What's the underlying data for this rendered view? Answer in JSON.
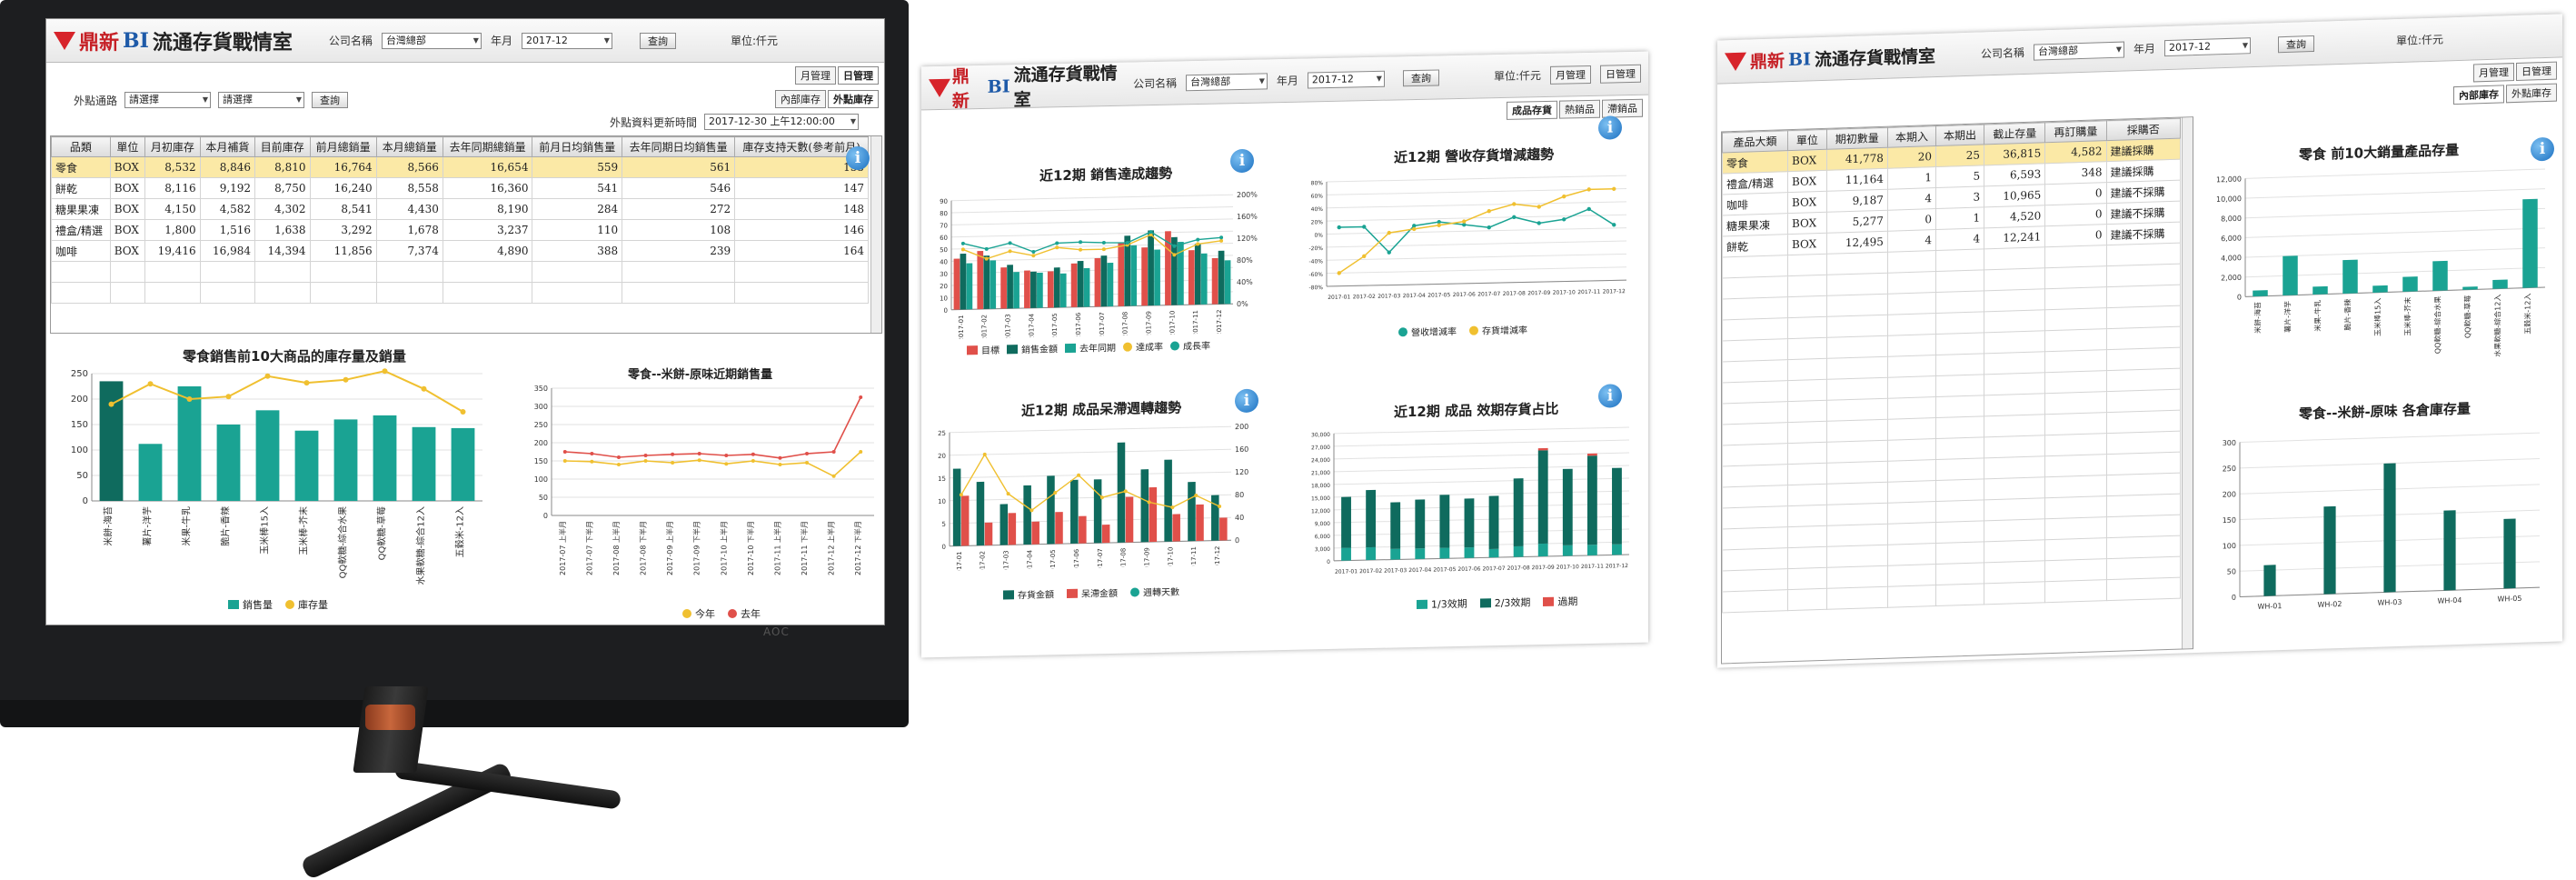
{
  "brand": {
    "name": "鼎新",
    "bi": "BI",
    "title": "流通存貨戰情室"
  },
  "colors": {
    "teal": "#1aa393",
    "dark_teal": "#0f6b5e",
    "red": "#e0504a",
    "yellow": "#f0c030",
    "blue": "#2f7fc1"
  },
  "panel1": {
    "company_label": "公司名稱",
    "company_value": "台灣總部",
    "period_label": "年月",
    "period_value": "2017-12",
    "query_label": "查詢",
    "unit_label": "單位:仟元",
    "tabs": [
      "月管理",
      "日管理"
    ],
    "channel_label": "外點通路",
    "channel_select1": "請選擇",
    "channel_select2": "請選擇",
    "channel_query": "查詢",
    "update_label": "外點資料更新時間",
    "update_value": "2017-12-30 上午12:00:00",
    "subtabs": [
      "內部庫存",
      "外點庫存"
    ],
    "table": {
      "columns": [
        "品類",
        "單位",
        "月初庫存",
        "本月補貨",
        "目前庫存",
        "前月總銷量",
        "本月總銷量",
        "去年同期總銷量",
        "前月日均銷售量",
        "去年同期日均銷售量",
        "庫存支持天數(參考前月)"
      ],
      "rows": [
        [
          "零食",
          "BOX",
          "8,532",
          "8,846",
          "8,810",
          "16,764",
          "8,566",
          "16,654",
          "559",
          "561",
          "155"
        ],
        [
          "餅乾",
          "BOX",
          "8,116",
          "9,192",
          "8,750",
          "16,240",
          "8,558",
          "16,360",
          "541",
          "546",
          "147"
        ],
        [
          "糖果果凍",
          "BOX",
          "4,150",
          "4,582",
          "4,302",
          "8,541",
          "4,430",
          "8,190",
          "284",
          "272",
          "148"
        ],
        [
          "禮盒/精選",
          "BOX",
          "1,800",
          "1,516",
          "1,638",
          "3,292",
          "1,678",
          "3,237",
          "110",
          "108",
          "146"
        ],
        [
          "咖啡",
          "BOX",
          "19,416",
          "16,984",
          "14,394",
          "11,856",
          "7,374",
          "4,890",
          "388",
          "239",
          "164"
        ]
      ]
    },
    "chart_left": {
      "title": "零食銷售前10大商品的庫存量及銷量",
      "legend": [
        "銷售量",
        "庫存量"
      ]
    },
    "chart_right": {
      "title": "零食--米餅-原味近期銷售量",
      "legend": [
        "今年",
        "去年"
      ]
    }
  },
  "panel2": {
    "company_label": "公司名稱",
    "company_value": "台灣總部",
    "period_label": "年月",
    "period_value": "2017-12",
    "query_label": "查詢",
    "unit_label": "單位:仟元",
    "tabs": [
      "月管理",
      "日管理"
    ],
    "subtabs": [
      "成品存貨",
      "熱銷品",
      "滯銷品"
    ],
    "c1_title": "近12期 銷售達成趨勢",
    "c1_legend": [
      "目標",
      "銷售金額",
      "去年同期",
      "達成率",
      "成長率"
    ],
    "c2_title": "近12期 營收存貨增減趨勢",
    "c2_legend": [
      "營收增減率",
      "存貨增減率"
    ],
    "c3_title": "近12期 成品呆滯週轉趨勢",
    "c3_legend": [
      "存貨金額",
      "呆滯金額",
      "週轉天數"
    ],
    "c4_title": "近12期 成品 效期存貨占比",
    "c4_legend": [
      "1/3效期",
      "2/3效期",
      "過期"
    ]
  },
  "panel3": {
    "company_label": "公司名稱",
    "company_value": "台灣總部",
    "period_label": "年月",
    "period_value": "2017-12",
    "query_label": "查詢",
    "unit_label": "單位:仟元",
    "tabs": [
      "月管理",
      "日管理"
    ],
    "subtabs": [
      "內部庫存",
      "外點庫存"
    ],
    "table": {
      "columns": [
        "產品大類",
        "單位",
        "期初數量",
        "本期入",
        "本期出",
        "截止存量",
        "再訂購量",
        "採購否"
      ],
      "rows": [
        [
          "零食",
          "BOX",
          "41,778",
          "20",
          "25",
          "36,815",
          "4,582",
          "建議採購"
        ],
        [
          "禮盒/精選",
          "BOX",
          "11,164",
          "1",
          "5",
          "6,593",
          "348",
          "建議採購"
        ],
        [
          "咖啡",
          "BOX",
          "9,187",
          "4",
          "3",
          "10,965",
          "0",
          "建議不採購"
        ],
        [
          "糖果果凍",
          "BOX",
          "5,277",
          "0",
          "1",
          "4,520",
          "0",
          "建議不採購"
        ],
        [
          "餅乾",
          "BOX",
          "12,495",
          "4",
          "4",
          "12,241",
          "0",
          "建議不採購"
        ]
      ]
    },
    "c1_title": "零食 前10大銷量產品存量",
    "c2_title": "零食--米餅-原味 各倉庫存量"
  },
  "monitor": {
    "brand_text": "AOC"
  },
  "chart_data": [
    {
      "type": "bar",
      "title": "零食銷售前10大商品的庫存量及銷量",
      "categories": [
        "米餅-海苔",
        "薯片-洋芋",
        "米果-牛乳",
        "脆片-香辣",
        "玉米棒15入",
        "玉米棒-芥末",
        "QQ軟糖-綜合水果",
        "QQ軟糖-草莓",
        "水果軟糖-綜合12入",
        "五穀米-12入"
      ],
      "series": [
        {
          "name": "銷售量",
          "values": [
            235,
            112,
            225,
            150,
            178,
            138,
            160,
            168,
            145,
            143
          ]
        },
        {
          "name": "庫存量",
          "values": [
            190,
            230,
            200,
            205,
            245,
            232,
            238,
            255,
            220,
            175
          ]
        }
      ],
      "ylim": [
        0,
        250
      ]
    },
    {
      "type": "line",
      "title": "零食--米餅-原味近期銷售量",
      "categories": [
        "2017-07 上半月",
        "2017-07 下半月",
        "2017-08 上半月",
        "2017-08 下半月",
        "2017-09 上半月",
        "2017-09 下半月",
        "2017-10 上半月",
        "2017-10 下半月",
        "2017-11 上半月",
        "2017-11 下半月",
        "2017-12 上半月",
        "2017-12 下半月"
      ],
      "series": [
        {
          "name": "今年",
          "values": [
            150,
            148,
            140,
            150,
            145,
            152,
            142,
            150,
            140,
            145,
            108,
            175
          ]
        },
        {
          "name": "去年",
          "values": [
            175,
            170,
            160,
            165,
            168,
            170,
            165,
            168,
            158,
            170,
            175,
            325
          ]
        }
      ],
      "ylim": [
        0,
        350
      ]
    },
    {
      "type": "bar",
      "title": "近12期 銷售達成趨勢",
      "categories": [
        "2017-01",
        "2017-02",
        "2017-03",
        "2017-04",
        "2017-05",
        "2017-06",
        "2017-07",
        "2017-08",
        "2017-09",
        "2017-10",
        "2017-11",
        "2017-12"
      ],
      "series": [
        {
          "name": "目標",
          "values": [
            42,
            48,
            34,
            31,
            30,
            36,
            40,
            52,
            48,
            61,
            45,
            38
          ]
        },
        {
          "name": "銷售金額",
          "values": [
            46,
            44,
            36,
            30,
            33,
            38,
            42,
            58,
            62,
            56,
            50,
            44
          ]
        },
        {
          "name": "去年同期",
          "values": [
            38,
            40,
            30,
            29,
            28,
            32,
            36,
            50,
            46,
            52,
            42,
            36
          ]
        },
        {
          "name": "達成率",
          "values": [
            110,
            92,
            105,
            96,
            110,
            105,
            105,
            112,
            130,
            92,
            111,
            116
          ]
        },
        {
          "name": "成長率",
          "values": [
            121,
            110,
            120,
            103,
            118,
            119,
            117,
            116,
            135,
            108,
            119,
            122
          ]
        }
      ],
      "ylim": [
        0,
        90
      ]
    },
    {
      "type": "line",
      "title": "近12期 營收存貨增減趨勢",
      "categories": [
        "2017-01",
        "2017-02",
        "2017-03",
        "2017-04",
        "2017-05",
        "2017-06",
        "2017-07",
        "2017-08",
        "2017-09",
        "2017-10",
        "2017-11",
        "2017-12"
      ],
      "series": [
        {
          "name": "營收增減率",
          "values": [
            10,
            10,
            -30,
            10,
            15,
            10,
            5,
            20,
            10,
            15,
            30,
            5
          ]
        },
        {
          "name": "存貨增減率",
          "values": [
            -60,
            -35,
            0,
            5,
            10,
            15,
            30,
            40,
            35,
            50,
            60,
            60
          ]
        }
      ],
      "ylim": [
        -80,
        80
      ]
    },
    {
      "type": "bar",
      "title": "近12期 成品呆滯週轉趨勢",
      "categories": [
        "2017-01",
        "2017-02",
        "2017-03",
        "2017-04",
        "2017-05",
        "2017-06",
        "2017-07",
        "2017-08",
        "2017-09",
        "2017-10",
        "2017-11",
        "2017-12"
      ],
      "series": [
        {
          "name": "存貨金額",
          "values": [
            17,
            14,
            9,
            13,
            15,
            14,
            14,
            22,
            16,
            18,
            13,
            10
          ]
        },
        {
          "name": "呆滯金額",
          "values": [
            11,
            5,
            7,
            5,
            7,
            6,
            4,
            10,
            12,
            6,
            8,
            5
          ]
        },
        {
          "name": "週轉天數",
          "values": [
            90,
            160,
            90,
            60,
            90,
            120,
            80,
            90,
            70,
            60,
            80,
            60
          ]
        }
      ],
      "ylim": [
        0,
        25
      ]
    },
    {
      "type": "bar",
      "title": "近12期 成品 效期存貨占比",
      "categories": [
        "2017-01",
        "2017-02",
        "2017-03",
        "2017-04",
        "2017-05",
        "2017-06",
        "2017-07",
        "2017-08",
        "2017-09",
        "2017-10",
        "2017-11",
        "2017-12"
      ],
      "series": [
        {
          "name": "1/3效期",
          "values": [
            3000,
            3000,
            2500,
            2500,
            2500,
            2500,
            2000,
            2500,
            3000,
            2500,
            2500,
            2500
          ]
        },
        {
          "name": "2/3效期",
          "values": [
            12000,
            13500,
            11000,
            11500,
            12500,
            11500,
            12500,
            16000,
            22000,
            18000,
            21000,
            18000
          ]
        },
        {
          "name": "過期",
          "values": [
            0,
            0,
            0,
            0,
            0,
            0,
            0,
            0,
            500,
            0,
            500,
            0
          ]
        }
      ],
      "ylim": [
        0,
        30000
      ]
    },
    {
      "type": "bar",
      "title": "零食 前10大銷量產品存量",
      "categories": [
        "米餅-海苔",
        "薯片-洋芋",
        "米果-牛乳",
        "脆片-香辣",
        "玉米棒15入",
        "玉米棒-芥末",
        "QQ軟糖-綜合水果",
        "QQ軟糖-草莓",
        "水果軟糖-綜合12入",
        "五穀米-12入"
      ],
      "values": [
        600,
        4000,
        800,
        3400,
        700,
        1500,
        3000,
        300,
        900,
        9000
      ],
      "ylim": [
        0,
        12000
      ]
    },
    {
      "type": "bar",
      "title": "零食--米餅-原味 各倉庫存量",
      "categories": [
        "WH-01",
        "WH-02",
        "WH-03",
        "WH-04",
        "WH-05"
      ],
      "values": [
        60,
        170,
        250,
        155,
        135
      ],
      "ylim": [
        0,
        300
      ]
    }
  ]
}
